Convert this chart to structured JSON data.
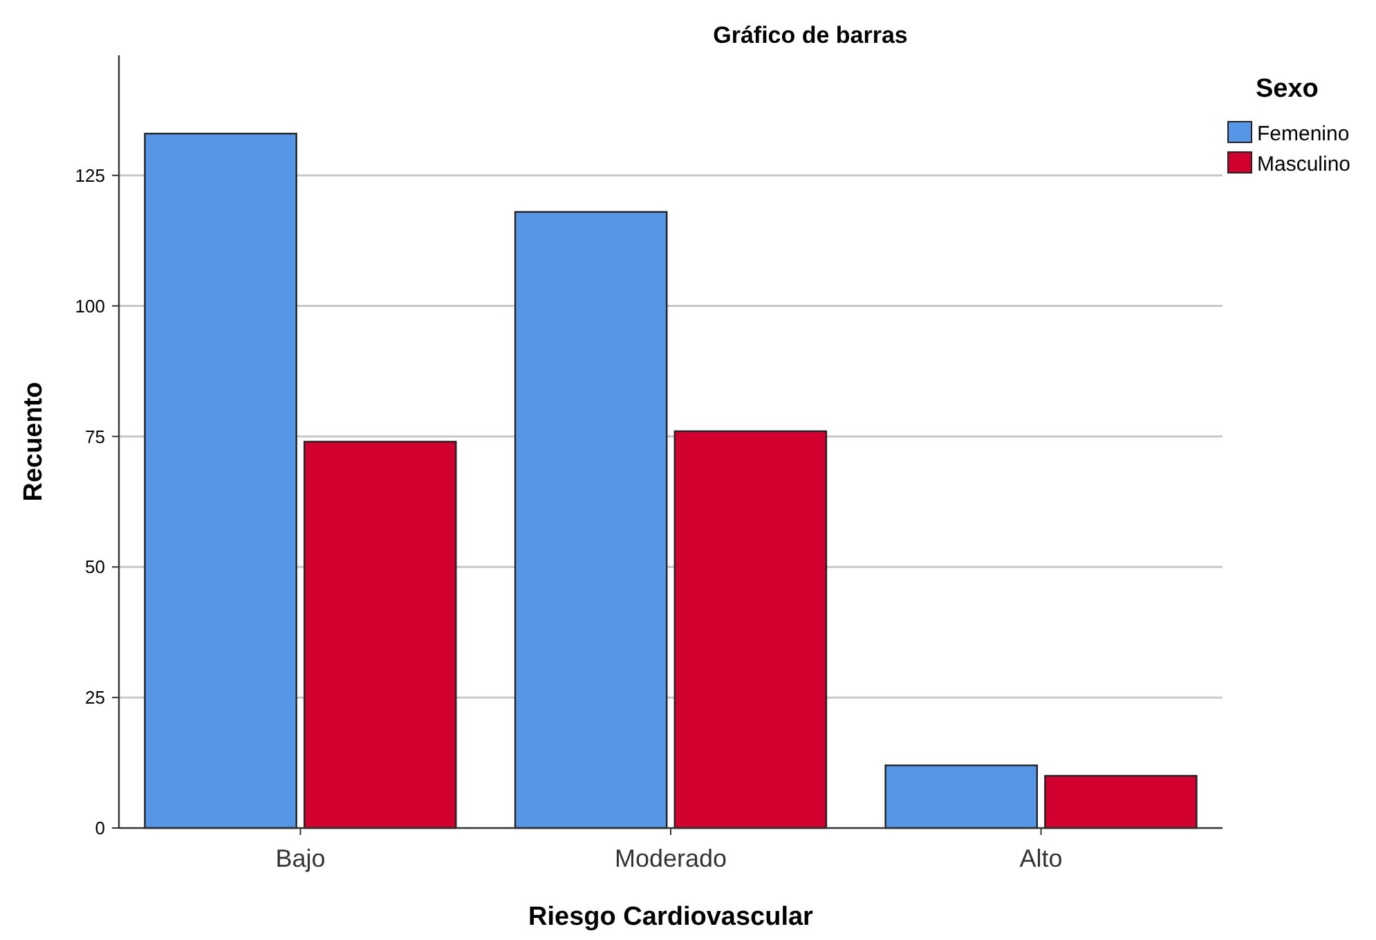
{
  "chart_data": {
    "type": "bar",
    "title": "Gráfico de barras",
    "xlabel": "Riesgo Cardiovascular",
    "ylabel": "Recuento",
    "legend_title": "Sexo",
    "categories": [
      "Bajo",
      "Moderado",
      "Alto"
    ],
    "series": [
      {
        "name": "Femenino",
        "color": "#5596e6",
        "values": [
          133,
          118,
          12
        ]
      },
      {
        "name": "Masculino",
        "color": "#d2002f",
        "values": [
          74,
          76,
          10
        ]
      }
    ],
    "ylim": [
      0,
      148
    ],
    "yticks": [
      0,
      25,
      50,
      75,
      100,
      125
    ],
    "grid": "y",
    "legend": "top right"
  }
}
